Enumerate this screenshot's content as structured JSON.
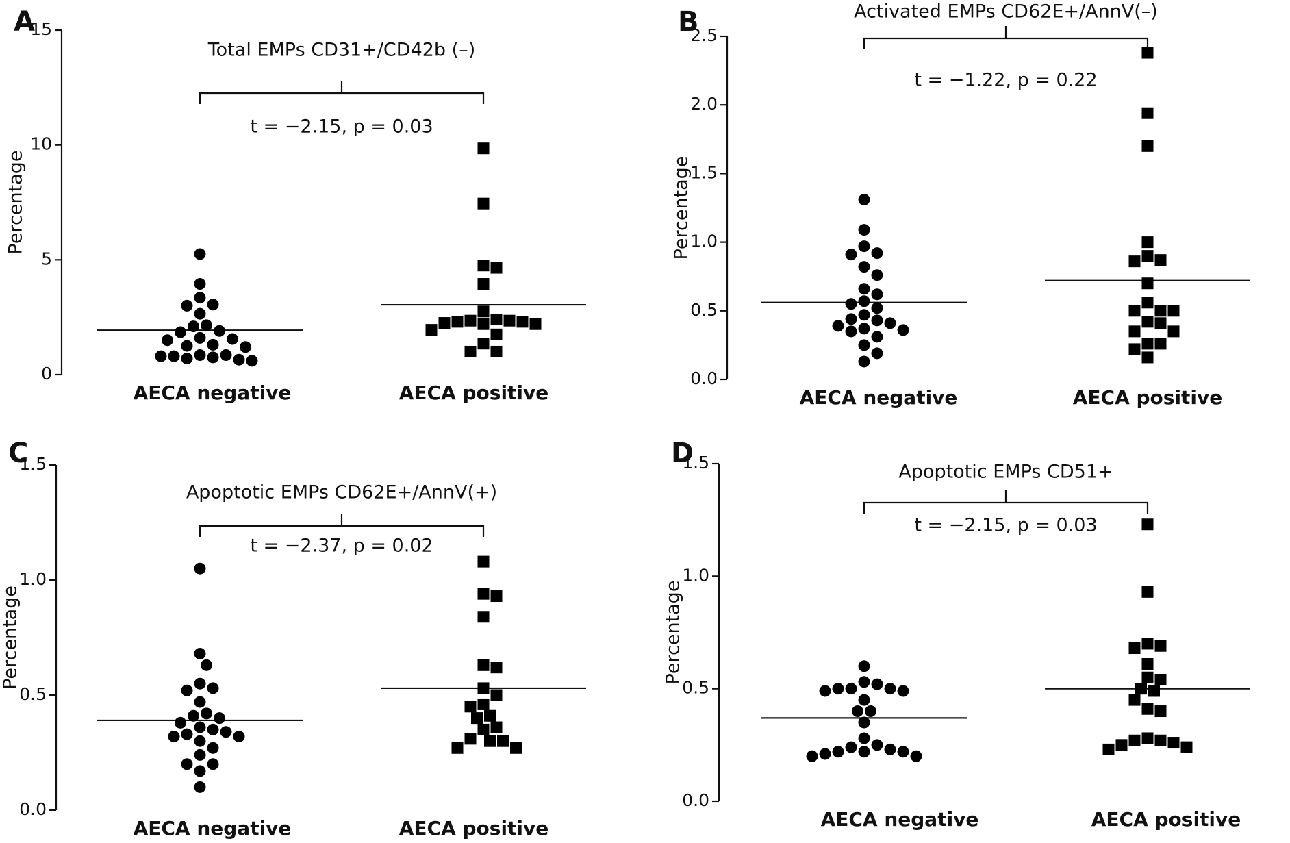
{
  "chart_data": [
    {
      "type": "dotplot",
      "panel": "A",
      "title": "Total EMPs CD31+/CD42b (–)",
      "annotation": "t = −2.15, p = 0.03",
      "ylabel": "Percentage",
      "categories": [
        "AECA negative",
        "AECA positive"
      ],
      "markers": [
        "circle",
        "square"
      ],
      "color": "#000000",
      "values": [
        [
          5.25,
          3.95,
          3.35,
          3.05,
          3.0,
          2.65,
          2.15,
          2.1,
          1.9,
          1.85,
          1.6,
          1.55,
          1.5,
          1.3,
          1.25,
          1.2,
          0.85,
          0.85,
          0.8,
          0.8,
          0.75,
          0.7,
          0.65,
          0.6
        ],
        [
          9.85,
          7.45,
          4.75,
          4.65,
          3.95,
          2.75,
          2.4,
          2.35,
          2.35,
          2.3,
          2.3,
          2.25,
          2.2,
          2.2,
          1.95,
          1.75,
          1.35,
          1.0,
          1.0
        ]
      ],
      "means": [
        1.93,
        3.04
      ],
      "ylim": [
        0,
        15
      ],
      "yticks": [
        0,
        5,
        10,
        15
      ]
    },
    {
      "type": "dotplot",
      "panel": "B",
      "title": "Activated EMPs CD62E+/AnnV(–)",
      "annotation": "t = −1.22, p = 0.22",
      "ylabel": "Percentage",
      "categories": [
        "AECA negative",
        "AECA positive"
      ],
      "markers": [
        "circle",
        "square"
      ],
      "color": "#000000",
      "values": [
        [
          1.31,
          1.09,
          0.97,
          0.92,
          0.91,
          0.82,
          0.76,
          0.66,
          0.62,
          0.57,
          0.55,
          0.52,
          0.47,
          0.44,
          0.43,
          0.41,
          0.39,
          0.37,
          0.36,
          0.35,
          0.31,
          0.25,
          0.19,
          0.13
        ],
        [
          2.38,
          1.94,
          1.7,
          1.0,
          0.9,
          0.87,
          0.86,
          0.7,
          0.56,
          0.5,
          0.5,
          0.5,
          0.42,
          0.41,
          0.35,
          0.35,
          0.26,
          0.26,
          0.22,
          0.16
        ]
      ],
      "means": [
        0.56,
        0.72
      ],
      "ylim": [
        0,
        2.5
      ],
      "yticks": [
        {
          "value": 0,
          "label": "0.0"
        },
        0.5,
        {
          "value": 1,
          "label": "1.0"
        },
        1.5,
        {
          "value": 2,
          "label": "2.0"
        },
        2.5
      ]
    },
    {
      "type": "dotplot",
      "panel": "C",
      "title": "Apoptotic EMPs CD62E+/AnnV(+)",
      "annotation": "t = −2.37, p = 0.02",
      "ylabel": "Percentage",
      "categories": [
        "AECA negative",
        "AECA positive"
      ],
      "markers": [
        "circle",
        "square"
      ],
      "color": "#000000",
      "values": [
        [
          1.05,
          0.68,
          0.63,
          0.55,
          0.53,
          0.52,
          0.47,
          0.42,
          0.41,
          0.4,
          0.38,
          0.36,
          0.35,
          0.34,
          0.33,
          0.32,
          0.32,
          0.3,
          0.27,
          0.24,
          0.2,
          0.2,
          0.17,
          0.1
        ],
        [
          1.08,
          0.94,
          0.93,
          0.84,
          0.63,
          0.62,
          0.53,
          0.5,
          0.46,
          0.45,
          0.41,
          0.4,
          0.36,
          0.35,
          0.31,
          0.3,
          0.3,
          0.27,
          0.27
        ]
      ],
      "means": [
        0.39,
        0.53
      ],
      "ylim": [
        0,
        1.5
      ],
      "yticks": [
        {
          "value": 0,
          "label": "0.0"
        },
        0.5,
        {
          "value": 1,
          "label": "1.0"
        },
        1.5
      ]
    },
    {
      "type": "dotplot",
      "panel": "D",
      "title": "Apoptotic EMPs CD51+",
      "annotation": "t = −2.15, p = 0.03",
      "ylabel": "Percentage",
      "categories": [
        "AECA negative",
        "AECA positive"
      ],
      "markers": [
        "circle",
        "square"
      ],
      "color": "#000000",
      "values": [
        [
          0.6,
          0.53,
          0.52,
          0.5,
          0.5,
          0.5,
          0.49,
          0.49,
          0.45,
          0.4,
          0.4,
          0.35,
          0.28,
          0.25,
          0.24,
          0.23,
          0.22,
          0.22,
          0.22,
          0.21,
          0.2,
          0.2
        ],
        [
          1.23,
          0.93,
          0.7,
          0.69,
          0.68,
          0.61,
          0.55,
          0.54,
          0.5,
          0.49,
          0.45,
          0.41,
          0.4,
          0.28,
          0.27,
          0.27,
          0.26,
          0.25,
          0.24,
          0.23
        ]
      ],
      "means": [
        0.37,
        0.5
      ],
      "ylim": [
        0,
        1.5
      ],
      "yticks": [
        {
          "value": 0,
          "label": "0.0"
        },
        0.5,
        {
          "value": 1,
          "label": "1.0"
        },
        1.5
      ]
    }
  ]
}
